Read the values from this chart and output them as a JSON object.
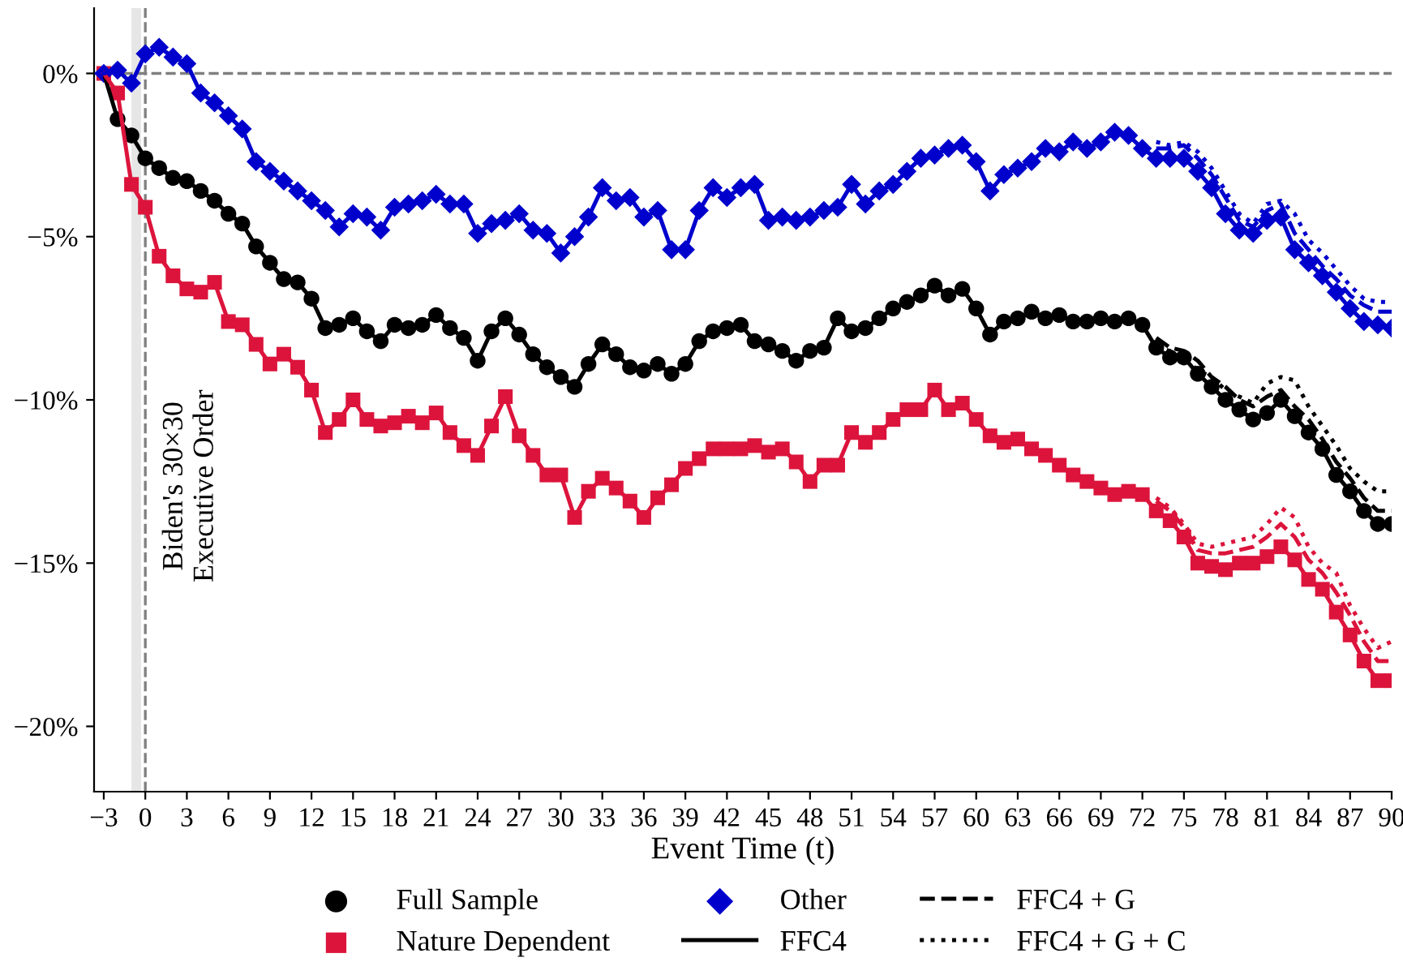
{
  "chart_data": {
    "type": "line",
    "xlabel": "Event Time (t)",
    "x": [
      -3,
      -2,
      -1,
      0,
      1,
      2,
      3,
      4,
      5,
      6,
      7,
      8,
      9,
      10,
      11,
      12,
      13,
      14,
      15,
      16,
      17,
      18,
      19,
      20,
      21,
      22,
      23,
      24,
      25,
      26,
      27,
      28,
      29,
      30,
      31,
      32,
      33,
      34,
      35,
      36,
      37,
      38,
      39,
      40,
      41,
      42,
      43,
      44,
      45,
      46,
      47,
      48,
      49,
      50,
      51,
      52,
      53,
      54,
      55,
      56,
      57,
      58,
      59,
      60,
      61,
      62,
      63,
      64,
      65,
      66,
      67,
      68,
      69,
      70,
      71,
      72,
      73,
      74,
      75,
      76,
      77,
      78,
      79,
      80,
      81,
      82,
      83,
      84,
      85,
      86,
      87,
      88,
      89,
      90
    ],
    "xlim": [
      -3.7,
      90
    ],
    "xticks": [
      {
        "value": -3,
        "label": "−3"
      },
      0,
      3,
      6,
      9,
      12,
      15,
      18,
      21,
      24,
      27,
      30,
      33,
      36,
      39,
      42,
      45,
      48,
      51,
      54,
      57,
      60,
      63,
      66,
      69,
      72,
      75,
      78,
      81,
      84,
      87,
      90
    ],
    "ylim": [
      -22,
      2
    ],
    "yticks": [
      {
        "value": 0,
        "label": "0%"
      },
      {
        "value": -5,
        "label": "−5%"
      },
      {
        "value": -10,
        "label": "−10%"
      },
      {
        "value": -15,
        "label": "−15%"
      },
      {
        "value": -20,
        "label": "−20%"
      }
    ],
    "legend": "bottom",
    "grid": false,
    "ref_lines": [
      {
        "axis": "y",
        "value": 0,
        "color": "#808080",
        "line_style": "dashed"
      },
      {
        "axis": "x",
        "value": 0,
        "color": "#808080",
        "line_style": "dashed",
        "label": "Biden's 30×30\nExecutive Order"
      }
    ],
    "bands": [
      {
        "axis": "x",
        "from": -1,
        "to": -0.3,
        "color": "#e6e6e6"
      }
    ],
    "series": [
      {
        "name": "Full Sample",
        "type": "scatter",
        "color": "#000000",
        "marker": "circle",
        "values": [
          null,
          -1.4,
          -1.9,
          -2.6,
          -2.9,
          -3.2,
          -3.3,
          -3.6,
          -3.9,
          -4.3,
          -4.6,
          -5.3,
          -5.8,
          -6.3,
          -6.4,
          -6.9,
          -7.8,
          -7.7,
          -7.5,
          -7.9,
          -8.2,
          -7.7,
          -7.8,
          -7.7,
          -7.4,
          -7.8,
          -8.1,
          -8.8,
          -7.9,
          -7.5,
          -8.0,
          -8.6,
          -9.0,
          -9.3,
          -9.6,
          -8.9,
          -8.3,
          -8.6,
          -9.0,
          -9.1,
          -8.9,
          -9.2,
          -8.9,
          -8.2,
          -7.9,
          -7.8,
          -7.7,
          -8.2,
          -8.3,
          -8.5,
          -8.8,
          -8.5,
          -8.4,
          -7.5,
          -7.9,
          -7.8,
          -7.5,
          -7.2,
          -7.0,
          -6.8,
          -6.5,
          -6.8,
          -6.6,
          -7.2,
          -8.0,
          -7.6,
          -7.5,
          -7.3,
          -7.5,
          -7.4,
          -7.6,
          -7.6,
          -7.5,
          -7.6,
          -7.5,
          -7.7,
          -8.4,
          -8.7,
          -8.7,
          -9.2,
          -9.6,
          -10.0,
          -10.3,
          -10.6,
          -10.4,
          -10.0,
          -10.5,
          -11.0,
          -11.5,
          -12.3,
          -12.8,
          -13.4,
          -13.8,
          -13.8
        ]
      },
      {
        "name": "Nature Dependent",
        "type": "scatter",
        "color": "#dc143c",
        "marker": "square",
        "values": [
          0.0,
          -0.6,
          -3.4,
          -4.1,
          -5.6,
          -6.2,
          -6.6,
          -6.7,
          -6.4,
          -7.6,
          -7.7,
          -8.3,
          -8.9,
          -8.6,
          -9.0,
          -9.7,
          -11.0,
          -10.6,
          -10.0,
          -10.6,
          -10.8,
          -10.7,
          -10.5,
          -10.7,
          -10.4,
          -11.0,
          -11.4,
          -11.7,
          -10.8,
          -9.9,
          -11.1,
          -11.7,
          -12.3,
          -12.3,
          -13.6,
          -12.8,
          -12.4,
          -12.7,
          -13.1,
          -13.6,
          -13.0,
          -12.6,
          -12.1,
          -11.8,
          -11.5,
          -11.5,
          -11.5,
          -11.4,
          -11.6,
          -11.5,
          -11.9,
          -12.5,
          -12.0,
          -12.0,
          -11.0,
          -11.3,
          -11.0,
          -10.6,
          -10.3,
          -10.3,
          -9.7,
          -10.3,
          -10.1,
          -10.6,
          -11.1,
          -11.3,
          -11.2,
          -11.5,
          -11.7,
          -12.0,
          -12.3,
          -12.5,
          -12.7,
          -12.9,
          -12.8,
          -12.9,
          -13.4,
          -13.7,
          -14.2,
          -15.0,
          -15.1,
          -15.2,
          -15.0,
          -15.0,
          -14.8,
          -14.5,
          -14.9,
          -15.5,
          -15.8,
          -16.5,
          -17.2,
          -18.0,
          -18.6,
          -18.6
        ]
      },
      {
        "name": "Other",
        "type": "scatter",
        "color": "#0000cd",
        "marker": "diamond",
        "values": [
          0.0,
          0.1,
          -0.3,
          0.6,
          0.8,
          0.5,
          0.3,
          -0.6,
          -0.9,
          -1.3,
          -1.7,
          -2.7,
          -3.0,
          -3.3,
          -3.6,
          -3.9,
          -4.2,
          -4.7,
          -4.3,
          -4.4,
          -4.8,
          -4.1,
          -4.0,
          -3.9,
          -3.7,
          -4.0,
          -4.0,
          -4.9,
          -4.6,
          -4.5,
          -4.3,
          -4.8,
          -4.9,
          -5.5,
          -5.0,
          -4.4,
          -3.5,
          -3.9,
          -3.8,
          -4.4,
          -4.2,
          -5.4,
          -5.4,
          -4.2,
          -3.5,
          -3.8,
          -3.5,
          -3.4,
          -4.5,
          -4.4,
          -4.5,
          -4.4,
          -4.2,
          -4.1,
          -3.4,
          -4.0,
          -3.6,
          -3.4,
          -3.0,
          -2.6,
          -2.5,
          -2.3,
          -2.2,
          -2.7,
          -3.6,
          -3.1,
          -2.9,
          -2.7,
          -2.3,
          -2.4,
          -2.1,
          -2.3,
          -2.1,
          -1.8,
          -1.9,
          -2.3,
          -2.6,
          -2.6,
          -2.6,
          -3.0,
          -3.5,
          -4.3,
          -4.8,
          -4.9,
          -4.5,
          -4.4,
          -5.4,
          -5.8,
          -6.2,
          -6.7,
          -7.2,
          -7.6,
          -7.7,
          -7.8
        ]
      },
      {
        "name": "FFC4",
        "color": "#000000",
        "line_style": "solid",
        "values": [
          0.0,
          -1.4,
          -1.9,
          -2.6,
          -2.9,
          -3.2,
          -3.3,
          -3.6,
          -3.9,
          -4.3,
          -4.6,
          -5.3,
          -5.8,
          -6.3,
          -6.4,
          -6.9,
          -7.8,
          -7.7,
          -7.5,
          -7.9,
          -8.2,
          -7.7,
          -7.8,
          -7.7,
          -7.4,
          -7.8,
          -8.1,
          -8.8,
          -7.9,
          -7.5,
          -8.0,
          -8.6,
          -9.0,
          -9.3,
          -9.6,
          -8.9,
          -8.3,
          -8.6,
          -9.0,
          -9.1,
          -8.9,
          -9.2,
          -8.9,
          -8.2,
          -7.9,
          -7.8,
          -7.7,
          -8.2,
          -8.3,
          -8.5,
          -8.8,
          -8.5,
          -8.4,
          -7.5,
          -7.9,
          -7.8,
          -7.5,
          -7.2,
          -7.0,
          -6.8,
          -6.5,
          -6.8,
          -6.6,
          -7.2,
          -8.0,
          -7.6,
          -7.5,
          -7.3,
          -7.5,
          -7.4,
          -7.6,
          -7.6,
          -7.5,
          -7.6,
          -7.5,
          -7.7,
          -8.4,
          -8.7,
          -8.7,
          -9.2,
          -9.6,
          -10.0,
          -10.3,
          -10.6,
          -10.4,
          -10.0,
          -10.5,
          -11.0,
          -11.5,
          -12.3,
          -12.8,
          -13.4,
          -13.8,
          -13.8
        ]
      },
      {
        "name": "FFC4 + G",
        "color": "#000000",
        "line_style": "dashed",
        "x": [
          73,
          74,
          75,
          76,
          77,
          78,
          79,
          80,
          81,
          82,
          83,
          84,
          85,
          86,
          87,
          88,
          89,
          90
        ],
        "values": [
          -8.1,
          -8.4,
          -8.5,
          -8.8,
          -9.3,
          -9.6,
          -10.0,
          -10.2,
          -9.9,
          -9.7,
          -10.2,
          -10.6,
          -11.2,
          -11.9,
          -12.4,
          -13.0,
          -13.4,
          -13.4
        ]
      },
      {
        "name": "FFC4 + G + C",
        "color": "#000000",
        "line_style": "dotted",
        "x": [
          73,
          74,
          75,
          76,
          77,
          78,
          79,
          80,
          81,
          82,
          83,
          84,
          85,
          86,
          87,
          88,
          89,
          90
        ],
        "values": [
          -8.4,
          -8.5,
          -8.7,
          -9.1,
          -9.3,
          -9.7,
          -9.9,
          -10.1,
          -9.5,
          -9.3,
          -9.4,
          -10.2,
          -10.8,
          -11.4,
          -12.1,
          -12.5,
          -12.8,
          -12.8
        ]
      },
      {
        "color": "#dc143c",
        "line_style": "solid",
        "values": [
          0.0,
          -0.6,
          -3.4,
          -4.1,
          -5.6,
          -6.2,
          -6.6,
          -6.7,
          -6.4,
          -7.6,
          -7.7,
          -8.3,
          -8.9,
          -8.6,
          -9.0,
          -9.7,
          -11.0,
          -10.6,
          -10.0,
          -10.6,
          -10.8,
          -10.7,
          -10.5,
          -10.7,
          -10.4,
          -11.0,
          -11.4,
          -11.7,
          -10.8,
          -9.9,
          -11.1,
          -11.7,
          -12.3,
          -12.3,
          -13.6,
          -12.8,
          -12.4,
          -12.7,
          -13.1,
          -13.6,
          -13.0,
          -12.6,
          -12.1,
          -11.8,
          -11.5,
          -11.5,
          -11.5,
          -11.4,
          -11.6,
          -11.5,
          -11.9,
          -12.5,
          -12.0,
          -12.0,
          -11.0,
          -11.3,
          -11.0,
          -10.6,
          -10.3,
          -10.3,
          -9.7,
          -10.3,
          -10.1,
          -10.6,
          -11.1,
          -11.3,
          -11.2,
          -11.5,
          -11.7,
          -12.0,
          -12.3,
          -12.5,
          -12.7,
          -12.9,
          -12.8,
          -12.9,
          -13.4,
          -13.7,
          -14.2,
          -15.0,
          -15.1,
          -15.2,
          -15.0,
          -15.0,
          -14.8,
          -14.5,
          -14.9,
          -15.5,
          -15.8,
          -16.5,
          -17.2,
          -18.0,
          -18.6,
          -18.6
        ]
      },
      {
        "color": "#dc143c",
        "line_style": "dashed",
        "x": [
          73,
          74,
          75,
          76,
          77,
          78,
          79,
          80,
          81,
          82,
          83,
          84,
          85,
          86,
          87,
          88,
          89,
          90
        ],
        "values": [
          -13.1,
          -13.4,
          -13.9,
          -14.6,
          -14.7,
          -14.7,
          -14.6,
          -14.5,
          -14.2,
          -13.8,
          -14.2,
          -14.9,
          -15.3,
          -15.9,
          -16.6,
          -17.4,
          -18.0,
          -18.0
        ]
      },
      {
        "color": "#dc143c",
        "line_style": "dotted",
        "x": [
          73,
          74,
          75,
          76,
          77,
          78,
          79,
          80,
          81,
          82,
          83,
          84,
          85,
          86,
          87,
          88,
          89,
          90
        ],
        "values": [
          -13.0,
          -13.3,
          -13.8,
          -14.4,
          -14.5,
          -14.4,
          -14.3,
          -14.2,
          -13.8,
          -13.3,
          -13.6,
          -14.5,
          -15.0,
          -15.3,
          -16.3,
          -17.0,
          -17.6,
          -17.4
        ]
      },
      {
        "color": "#0000cd",
        "line_style": "solid",
        "values": [
          0.0,
          0.1,
          -0.3,
          0.6,
          0.8,
          0.5,
          0.3,
          -0.6,
          -0.9,
          -1.3,
          -1.7,
          -2.7,
          -3.0,
          -3.3,
          -3.6,
          -3.9,
          -4.2,
          -4.7,
          -4.3,
          -4.4,
          -4.8,
          -4.1,
          -4.0,
          -3.9,
          -3.7,
          -4.0,
          -4.0,
          -4.9,
          -4.6,
          -4.5,
          -4.3,
          -4.8,
          -4.9,
          -5.5,
          -5.0,
          -4.4,
          -3.5,
          -3.9,
          -3.8,
          -4.4,
          -4.2,
          -5.4,
          -5.4,
          -4.2,
          -3.5,
          -3.8,
          -3.5,
          -3.4,
          -4.5,
          -4.4,
          -4.5,
          -4.4,
          -4.2,
          -4.1,
          -3.4,
          -4.0,
          -3.6,
          -3.4,
          -3.0,
          -2.6,
          -2.5,
          -2.3,
          -2.2,
          -2.7,
          -3.6,
          -3.1,
          -2.9,
          -2.7,
          -2.3,
          -2.4,
          -2.1,
          -2.3,
          -2.1,
          -1.8,
          -1.9,
          -2.3,
          -2.6,
          -2.6,
          -2.6,
          -3.0,
          -3.5,
          -4.3,
          -4.8,
          -4.9,
          -4.5,
          -4.4,
          -5.4,
          -5.8,
          -6.2,
          -6.7,
          -7.2,
          -7.6,
          -7.7,
          -7.8
        ]
      },
      {
        "color": "#0000cd",
        "line_style": "dashed",
        "x": [
          73,
          74,
          75,
          76,
          77,
          78,
          79,
          80,
          81,
          82,
          83,
          84,
          85,
          86,
          87,
          88,
          89,
          90
        ],
        "values": [
          -2.3,
          -2.3,
          -2.2,
          -2.6,
          -3.1,
          -3.8,
          -4.5,
          -4.7,
          -4.2,
          -4.0,
          -4.9,
          -5.4,
          -5.9,
          -6.3,
          -6.8,
          -7.1,
          -7.3,
          -7.3
        ]
      },
      {
        "color": "#0000cd",
        "line_style": "dotted",
        "x": [
          73,
          74,
          75,
          76,
          77,
          78,
          79,
          80,
          81,
          82,
          83,
          84,
          85,
          86,
          87,
          88,
          89,
          90
        ],
        "values": [
          -2.1,
          -2.2,
          -2.1,
          -2.4,
          -2.9,
          -3.6,
          -4.3,
          -4.6,
          -4.0,
          -3.9,
          -4.3,
          -5.1,
          -5.5,
          -6.0,
          -6.5,
          -6.9,
          -7.0,
          -7.0
        ]
      }
    ]
  }
}
